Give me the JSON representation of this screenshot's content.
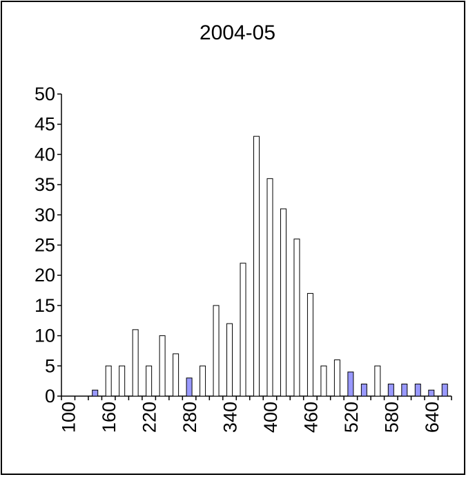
{
  "chart_data": {
    "type": "bar",
    "title": "2004-05",
    "xlabel": "",
    "ylabel": "",
    "ylim": [
      0,
      50
    ],
    "yticks": [
      "0",
      "5",
      "10",
      "15",
      "20",
      "25",
      "30",
      "35",
      "40",
      "45",
      "50"
    ],
    "xtick_labels": [
      "100",
      "160",
      "220",
      "280",
      "340",
      "400",
      "460",
      "520",
      "580",
      "640"
    ],
    "categories": [
      100,
      120,
      140,
      160,
      180,
      200,
      220,
      240,
      260,
      280,
      300,
      320,
      340,
      360,
      380,
      400,
      420,
      440,
      460,
      480,
      500,
      520,
      540,
      560,
      580,
      600,
      620,
      640,
      660
    ],
    "values": [
      0,
      0,
      1,
      5,
      5,
      11,
      5,
      10,
      7,
      3,
      5,
      15,
      12,
      22,
      43,
      36,
      31,
      26,
      17,
      5,
      6,
      4,
      2,
      5,
      2,
      2,
      2,
      1,
      2
    ],
    "highlighted": [
      false,
      false,
      true,
      false,
      false,
      false,
      false,
      false,
      false,
      true,
      false,
      false,
      false,
      false,
      false,
      false,
      false,
      false,
      false,
      false,
      false,
      true,
      true,
      false,
      true,
      true,
      true,
      true,
      true
    ],
    "colors": {
      "default_fill": "#ffffff",
      "highlight_fill": "#9999ff",
      "stroke": "#000000"
    },
    "grid": false,
    "legend": "none"
  }
}
